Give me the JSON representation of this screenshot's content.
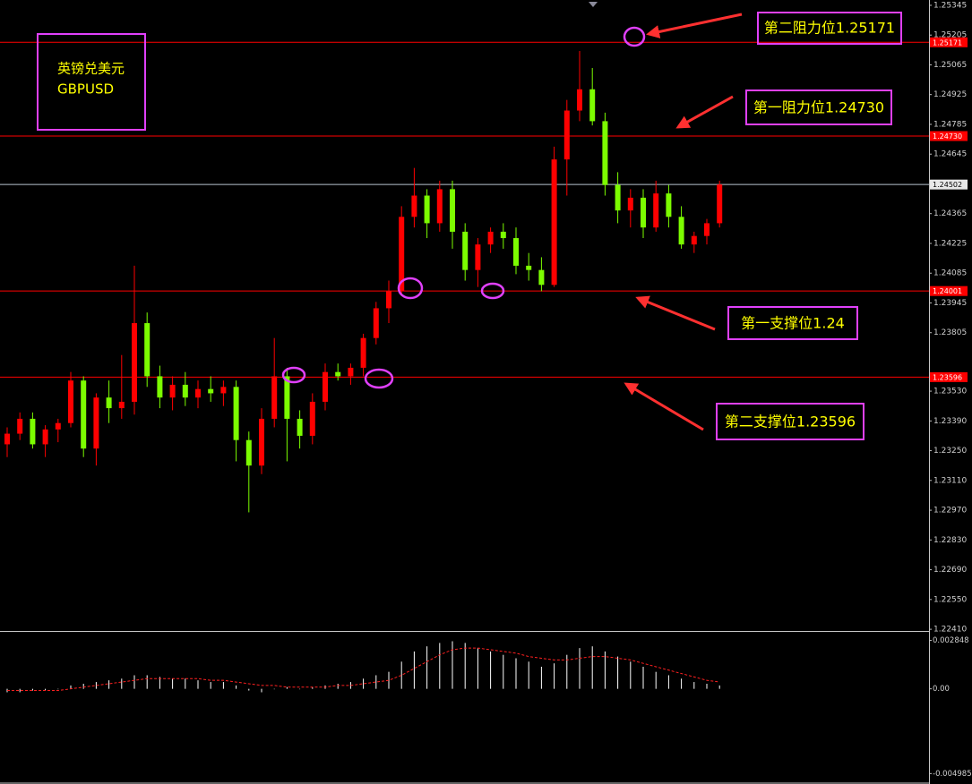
{
  "chart_data": [
    {
      "type": "candlestick",
      "title": "英镑兑美元",
      "subtitle": "GBPUSD",
      "up_color": "#ff0000",
      "down_color": "#7cfc00",
      "ohlc": [
        [
          1.2328,
          1.2336,
          1.2322,
          1.2333
        ],
        [
          1.2333,
          1.2343,
          1.233,
          1.234
        ],
        [
          1.234,
          1.2343,
          1.2326,
          1.2328
        ],
        [
          1.2328,
          1.2337,
          1.2322,
          1.2335
        ],
        [
          1.2335,
          1.234,
          1.2329,
          1.2338
        ],
        [
          1.2338,
          1.2362,
          1.2336,
          1.2358
        ],
        [
          1.2358,
          1.236,
          1.2322,
          1.2326
        ],
        [
          1.2326,
          1.2352,
          1.2318,
          1.235
        ],
        [
          1.235,
          1.2358,
          1.2338,
          1.2345
        ],
        [
          1.2345,
          1.237,
          1.234,
          1.2348
        ],
        [
          1.2348,
          1.2412,
          1.2342,
          1.2385
        ],
        [
          1.2385,
          1.239,
          1.2355,
          1.236
        ],
        [
          1.236,
          1.2365,
          1.2345,
          1.235
        ],
        [
          1.235,
          1.236,
          1.2344,
          1.2356
        ],
        [
          1.2356,
          1.2362,
          1.2346,
          1.235
        ],
        [
          1.235,
          1.2358,
          1.2345,
          1.2354
        ],
        [
          1.2354,
          1.236,
          1.2348,
          1.2352
        ],
        [
          1.2352,
          1.2358,
          1.2346,
          1.2355
        ],
        [
          1.2355,
          1.2358,
          1.232,
          1.233
        ],
        [
          1.233,
          1.2334,
          1.2296,
          1.2318
        ],
        [
          1.2318,
          1.2345,
          1.2314,
          1.234
        ],
        [
          1.234,
          1.2378,
          1.2336,
          1.236
        ],
        [
          1.236,
          1.2364,
          1.232,
          1.234
        ],
        [
          1.234,
          1.2344,
          1.2326,
          1.2332
        ],
        [
          1.2332,
          1.2352,
          1.2328,
          1.2348
        ],
        [
          1.2348,
          1.2366,
          1.2344,
          1.2362
        ],
        [
          1.2362,
          1.2366,
          1.2358,
          1.236
        ],
        [
          1.236,
          1.2366,
          1.2356,
          1.2364
        ],
        [
          1.2364,
          1.238,
          1.236,
          1.2378
        ],
        [
          1.2378,
          1.2395,
          1.2375,
          1.2392
        ],
        [
          1.2392,
          1.2405,
          1.2385,
          1.24
        ],
        [
          1.24,
          1.244,
          1.2398,
          1.2435
        ],
        [
          1.2435,
          1.2458,
          1.243,
          1.2445
        ],
        [
          1.2445,
          1.2448,
          1.2425,
          1.2432
        ],
        [
          1.2432,
          1.2452,
          1.2428,
          1.2448
        ],
        [
          1.2448,
          1.2452,
          1.242,
          1.2428
        ],
        [
          1.2428,
          1.2432,
          1.2405,
          1.241
        ],
        [
          1.241,
          1.2425,
          1.2402,
          1.2422
        ],
        [
          1.2422,
          1.243,
          1.2418,
          1.2428
        ],
        [
          1.2428,
          1.2432,
          1.242,
          1.2425
        ],
        [
          1.2425,
          1.243,
          1.2408,
          1.2412
        ],
        [
          1.2412,
          1.2418,
          1.2405,
          1.241
        ],
        [
          1.241,
          1.2416,
          1.24,
          1.2403
        ],
        [
          1.2403,
          1.2468,
          1.2402,
          1.2462
        ],
        [
          1.2462,
          1.249,
          1.2445,
          1.2485
        ],
        [
          1.2485,
          1.2513,
          1.248,
          1.2495
        ],
        [
          1.2495,
          1.2505,
          1.2478,
          1.248
        ],
        [
          1.248,
          1.2484,
          1.2445,
          1.245
        ],
        [
          1.245,
          1.2456,
          1.2432,
          1.2438
        ],
        [
          1.2438,
          1.2448,
          1.243,
          1.2444
        ],
        [
          1.2444,
          1.2448,
          1.2425,
          1.243
        ],
        [
          1.243,
          1.2452,
          1.2428,
          1.2446
        ],
        [
          1.2446,
          1.245,
          1.243,
          1.2435
        ],
        [
          1.2435,
          1.244,
          1.242,
          1.2422
        ],
        [
          1.2422,
          1.2428,
          1.2418,
          1.2426
        ],
        [
          1.2426,
          1.2434,
          1.2422,
          1.2432
        ],
        [
          1.2432,
          1.2452,
          1.243,
          1.24502
        ]
      ],
      "ylim": [
        1.22402,
        1.2537
      ],
      "yticks": [
        1.25345,
        1.25205,
        1.25065,
        1.24925,
        1.24785,
        1.24645,
        1.24365,
        1.24225,
        1.24085,
        1.23945,
        1.23805,
        {
          "value": 1.2353,
          "label": "1.23530"
        },
        {
          "value": 1.2339,
          "label": "1.23390"
        },
        {
          "value": 1.2325,
          "label": "1.23250"
        },
        {
          "value": 1.2311,
          "label": "1.23110"
        },
        {
          "value": 1.2297,
          "label": "1.22970"
        },
        {
          "value": 1.2283,
          "label": "1.22830"
        },
        {
          "value": 1.2269,
          "label": "1.22690"
        },
        {
          "value": 1.2255,
          "label": "1.22550"
        },
        {
          "value": 1.2241,
          "label": "1.22410"
        }
      ],
      "levels": [
        1.25171,
        {
          "value": 1.2473,
          "label": "1.24730"
        },
        1.24001,
        1.23596
      ],
      "level_color": "#ff0000",
      "current_price": 1.24502,
      "current_color": "#b8c4d0",
      "annotations": [
        "第二阻力位1.25171",
        "第一阻力位1.24730",
        "第一支撑位1.24",
        "第二支撑位1.23596"
      ]
    },
    {
      "type": "macd",
      "series": [
        {
          "color": "#ffffff",
          "values": [
            -0.0002,
            -0.0002,
            -0.0001,
            -0.0001,
            0,
            0.0002,
            0.0003,
            0.0004,
            0.0005,
            0.0006,
            0.0008,
            0.0008,
            0.0007,
            0.0006,
            0.0006,
            0.0005,
            0.0004,
            0.0004,
            0.0002,
            -0.0001,
            -0.0002,
            0,
            0.0001,
            0,
            0.0001,
            0.0002,
            0.0003,
            0.0004,
            0.0006,
            0.0008,
            0.001,
            0.0016,
            0.0022,
            0.0025,
            0.0027,
            0.0028,
            0.0027,
            0.0024,
            0.0022,
            0.002,
            0.0018,
            0.0016,
            0.0013,
            0.0015,
            0.002,
            0.0024,
            0.0025,
            0.0022,
            0.0019,
            0.0016,
            0.0013,
            0.001,
            0.0008,
            0.0006,
            0.0004,
            0.0003,
            0.0002
          ]
        },
        {
          "color": "#ff2020",
          "values": [
            -0.0001,
            -0.0001,
            -0.0001,
            -0.0001,
            -0.0001,
            0,
            0.0001,
            0.0002,
            0.0003,
            0.0004,
            0.0005,
            0.0006,
            0.0006,
            0.0006,
            0.0006,
            0.0006,
            0.0005,
            0.0005,
            0.0004,
            0.0003,
            0.0002,
            0.0002,
            0.0001,
            0.0001,
            0.0001,
            0.0001,
            0.0002,
            0.0002,
            0.0003,
            0.0004,
            0.0005,
            0.0008,
            0.0012,
            0.0016,
            0.002,
            0.0023,
            0.0024,
            0.0024,
            0.0023,
            0.0022,
            0.0021,
            0.0019,
            0.0018,
            0.0017,
            0.0017,
            0.0018,
            0.0019,
            0.0019,
            0.0018,
            0.0017,
            0.0015,
            0.0013,
            0.0011,
            0.0009,
            0.0007,
            0.0005,
            0.0004
          ]
        }
      ],
      "ylim": [
        -0.0056,
        0.0033
      ],
      "yticks": [
        0.002848,
        {
          "value": 0,
          "label": "0.00"
        },
        -0.004985
      ]
    }
  ]
}
